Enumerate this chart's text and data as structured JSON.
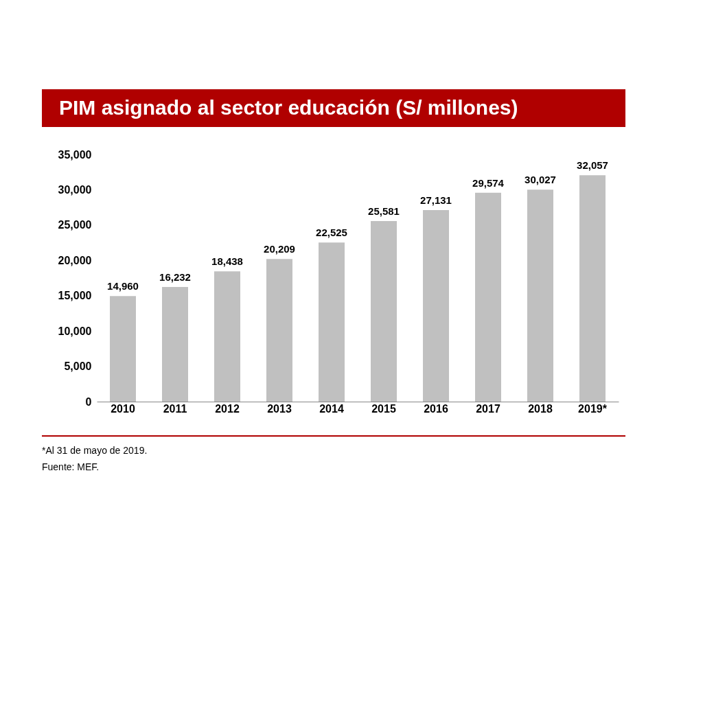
{
  "chart_data": {
    "type": "bar",
    "title": "PIM asignado al sector educación (S/ millones)",
    "categories": [
      "2010",
      "2011",
      "2012",
      "2013",
      "2014",
      "2015",
      "2016",
      "2017",
      "2018",
      "2019*"
    ],
    "values": [
      14960,
      16232,
      18438,
      20209,
      22525,
      25581,
      27131,
      29574,
      30027,
      32057
    ],
    "value_labels": [
      "14,960",
      "16,232",
      "18,438",
      "20,209",
      "22,525",
      "25,581",
      "27,131",
      "29,574",
      "30,027",
      "32,057"
    ],
    "color": "#c0c0c0",
    "ylim": [
      0,
      35000
    ],
    "yticks": [
      0,
      {
        "value": 5000,
        "label": "5,000"
      },
      {
        "value": 10000,
        "label": "10,000"
      },
      {
        "value": 15000,
        "label": "15,000"
      },
      {
        "value": 20000,
        "label": "20,000"
      },
      {
        "value": 25000,
        "label": "25,000"
      },
      {
        "value": 30000,
        "label": "30,000"
      },
      {
        "value": 35000,
        "label": "35,000"
      }
    ],
    "grid": false,
    "annotations": [
      "*Al 31 de mayo de 2019.",
      "Fuente: MEF."
    ]
  }
}
